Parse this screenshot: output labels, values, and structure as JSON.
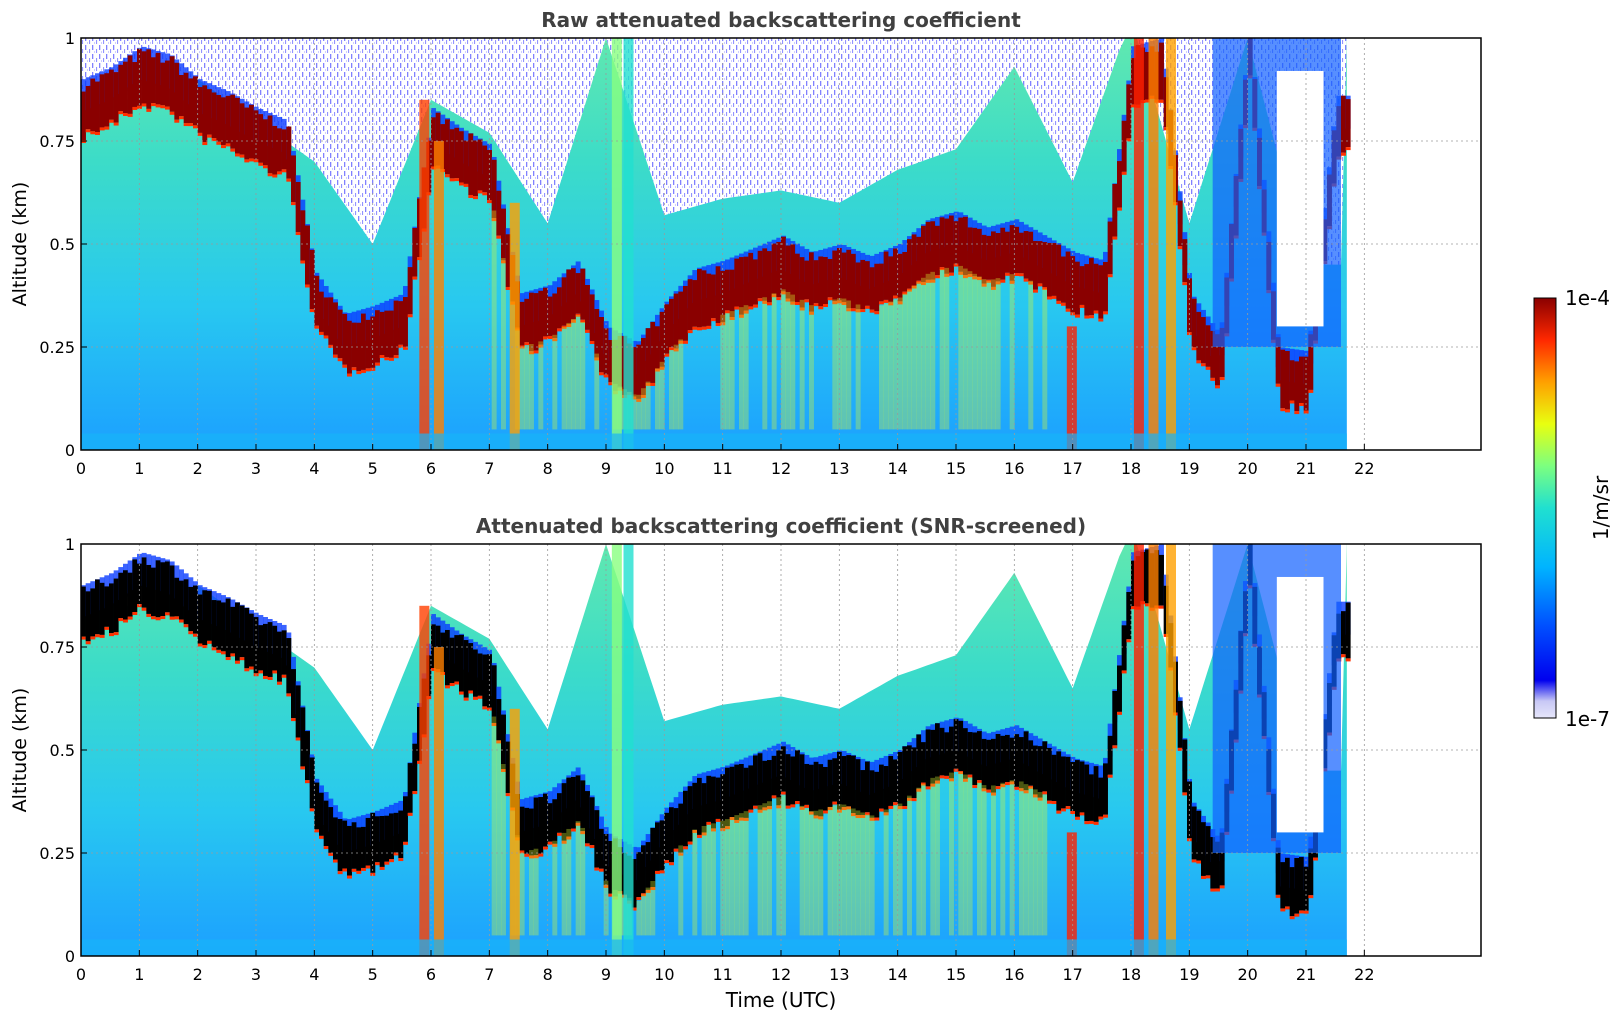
{
  "figure": {
    "shared_xlabel": "Time (UTC)",
    "colorbar": {
      "label": "1/m/sr",
      "max_label": "1e-4",
      "min_label": "1e-7",
      "scale": "log",
      "colormap": "jet",
      "low_end_color": "#e6e6fa"
    }
  },
  "chart_data": [
    {
      "type": "heatmap",
      "title": "Raw attenuated backscattering coefficient",
      "xlabel": "",
      "ylabel": "Altitude (km)",
      "xlim": [
        0,
        24
      ],
      "ylim": [
        0,
        1
      ],
      "xticks": [
        "0",
        "1",
        "2",
        "3",
        "4",
        "5",
        "6",
        "7",
        "8",
        "9",
        "10",
        "11",
        "12",
        "13",
        "14",
        "15",
        "16",
        "17",
        "18",
        "19",
        "20",
        "21",
        "22"
      ],
      "yticks": [
        "0",
        "0.25",
        "0.5",
        "0.75",
        "1"
      ],
      "grid": true,
      "data_end_time": 21.7,
      "cloud_layer_base": [
        [
          0,
          0.82
        ],
        [
          0.5,
          0.85
        ],
        [
          1,
          0.9
        ],
        [
          1.5,
          0.88
        ],
        [
          2,
          0.82
        ],
        [
          2.5,
          0.79
        ],
        [
          3,
          0.75
        ],
        [
          3.5,
          0.72
        ],
        [
          4,
          0.35
        ],
        [
          4.5,
          0.25
        ],
        [
          5,
          0.27
        ],
        [
          5.5,
          0.3
        ],
        [
          6,
          0.75
        ],
        [
          6.5,
          0.7
        ],
        [
          7,
          0.66
        ],
        [
          7.5,
          0.3
        ],
        [
          8,
          0.32
        ],
        [
          8.5,
          0.38
        ],
        [
          9,
          0.22
        ],
        [
          9.5,
          0.18
        ],
        [
          10,
          0.28
        ],
        [
          10.5,
          0.36
        ],
        [
          11,
          0.38
        ],
        [
          11.5,
          0.41
        ],
        [
          12,
          0.44
        ],
        [
          12.5,
          0.4
        ],
        [
          13,
          0.42
        ],
        [
          13.5,
          0.39
        ],
        [
          14,
          0.42
        ],
        [
          14.5,
          0.48
        ],
        [
          15,
          0.5
        ],
        [
          15.5,
          0.46
        ],
        [
          16,
          0.48
        ],
        [
          16.5,
          0.44
        ],
        [
          17,
          0.4
        ],
        [
          17.5,
          0.38
        ],
        [
          18,
          0.9
        ],
        [
          18.5,
          0.92
        ],
        [
          19,
          0.3
        ],
        [
          19.5,
          0.2
        ],
        [
          20,
          0.95
        ],
        [
          20.5,
          0.17
        ],
        [
          21,
          0.16
        ],
        [
          21.5,
          0.78
        ]
      ],
      "noise_ceiling": [
        [
          0,
          0.8
        ],
        [
          1,
          0.8
        ],
        [
          2,
          0.85
        ],
        [
          3,
          0.75
        ],
        [
          4,
          0.65
        ],
        [
          5,
          0.45
        ],
        [
          6,
          0.8
        ],
        [
          7,
          0.72
        ],
        [
          8,
          0.5
        ],
        [
          9,
          0.95
        ],
        [
          10,
          0.52
        ],
        [
          11,
          0.56
        ],
        [
          12,
          0.58
        ],
        [
          13,
          0.55
        ],
        [
          14,
          0.63
        ],
        [
          15,
          0.68
        ],
        [
          16,
          0.88
        ],
        [
          17,
          0.6
        ],
        [
          18,
          1.0
        ],
        [
          19,
          0.5
        ],
        [
          20,
          0.95
        ],
        [
          21,
          0.4
        ]
      ]
    },
    {
      "type": "heatmap",
      "title": "Attenuated backscattering coefficient (SNR-screened)",
      "xlabel": "Time (UTC)",
      "ylabel": "Altitude (km)",
      "xlim": [
        0,
        24
      ],
      "ylim": [
        0,
        1
      ],
      "xticks": [
        "0",
        "1",
        "2",
        "3",
        "4",
        "5",
        "6",
        "7",
        "8",
        "9",
        "10",
        "11",
        "12",
        "13",
        "14",
        "15",
        "16",
        "17",
        "18",
        "19",
        "20",
        "21",
        "22"
      ],
      "yticks": [
        "0",
        "0.25",
        "0.5",
        "0.75",
        "1"
      ],
      "grid": true,
      "data_end_time": 21.7,
      "saturated_color": "#000000"
    }
  ]
}
